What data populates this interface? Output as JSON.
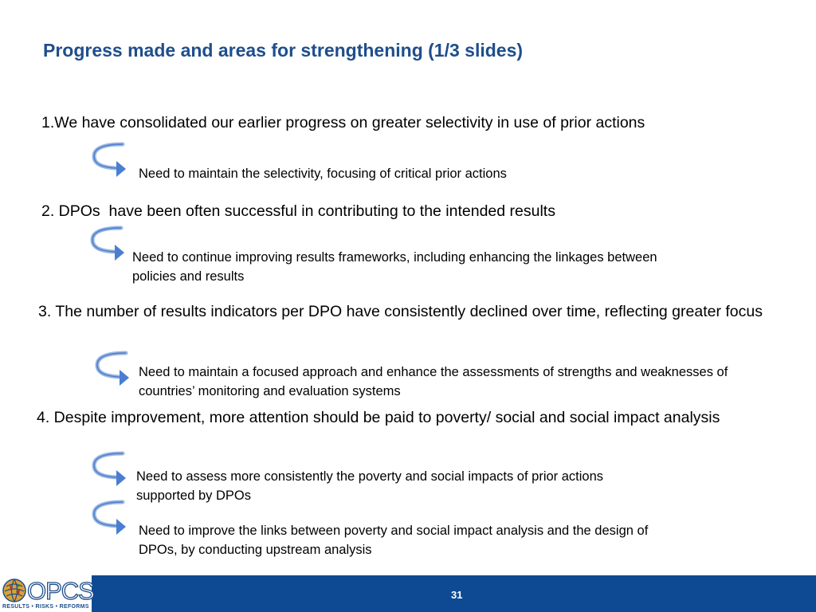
{
  "slide": {
    "title": "Progress made and areas for strengthening (1/3 slides)",
    "points": [
      {
        "text": "1.We have consolidated our earlier progress on greater selectivity in use of prior actions",
        "actions": [
          "Need to maintain the selectivity, focusing of critical prior actions"
        ]
      },
      {
        "text": "2. DPOs  have been often successful in contributing to the intended results",
        "actions": [
          "Need to continue improving results frameworks, including enhancing the linkages between policies and results"
        ]
      },
      {
        "text": "3. The number of results indicators per DPO have consistently declined over time, reflecting greater focus",
        "actions": [
          "Need to maintain a focused approach and enhance the assessments of strengths and weaknesses of countries’ monitoring and evaluation systems"
        ]
      },
      {
        "text": "4. Despite improvement, more attention should be paid to poverty/ social and social impact analysis",
        "actions": [
          "Need to assess more consistently the poverty and social impacts of prior actions supported by DPOs",
          "Need to improve the links between poverty and social impact analysis and the design of DPOs, by conducting upstream analysis"
        ]
      }
    ]
  },
  "footer": {
    "logo_text": "OPCS",
    "logo_tagline": "RESULTS • RISKS • REFORMS",
    "page_number": "31",
    "bar_color": "#0e4a93"
  },
  "colors": {
    "title": "#1f4e8c",
    "arrow": "#4a7ed0"
  },
  "icons": {
    "action_arrow": "curved-arrow-icon",
    "logo_globe": "globe-icon"
  }
}
